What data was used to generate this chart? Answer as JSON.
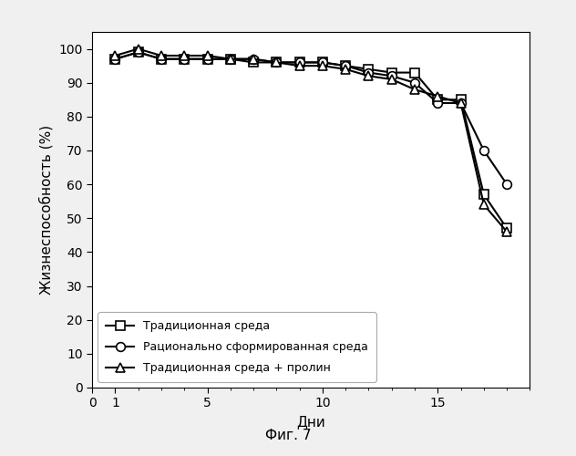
{
  "series": [
    {
      "label": "Традиционная среда",
      "x": [
        1,
        2,
        3,
        4,
        5,
        6,
        7,
        8,
        9,
        10,
        11,
        12,
        13,
        14,
        15,
        16,
        17,
        18
      ],
      "y": [
        97,
        99,
        97,
        97,
        97,
        97,
        96,
        96,
        96,
        96,
        95,
        94,
        93,
        93,
        85,
        85,
        57,
        47
      ],
      "marker": "s",
      "color": "#000000",
      "linestyle": "-"
    },
    {
      "label": "Рационально сформированная среда",
      "x": [
        1,
        2,
        3,
        4,
        5,
        6,
        7,
        8,
        9,
        10,
        11,
        12,
        13,
        14,
        15,
        16,
        17,
        18
      ],
      "y": [
        97,
        99,
        97,
        97,
        97,
        97,
        97,
        96,
        96,
        96,
        95,
        93,
        92,
        90,
        84,
        84,
        70,
        60
      ],
      "marker": "o",
      "color": "#000000",
      "linestyle": "-"
    },
    {
      "label": "Традиционная среда + пролин",
      "x": [
        1,
        2,
        3,
        4,
        5,
        6,
        7,
        8,
        9,
        10,
        11,
        12,
        13,
        14,
        15,
        16,
        17,
        18
      ],
      "y": [
        98,
        100,
        98,
        98,
        98,
        97,
        97,
        96,
        95,
        95,
        94,
        92,
        91,
        88,
        86,
        84,
        54,
        46
      ],
      "marker": "^",
      "color": "#000000",
      "linestyle": "-"
    }
  ],
  "xlabel": "Дни",
  "ylabel": "Жизнеспособность (%)",
  "xlim": [
    0,
    19
  ],
  "ylim": [
    0,
    105
  ],
  "xticks": [
    0,
    1,
    5,
    10,
    15
  ],
  "yticks": [
    0,
    10,
    20,
    30,
    40,
    50,
    60,
    70,
    80,
    90,
    100
  ],
  "xtick_labels": [
    "0",
    "1",
    "5",
    "10",
    "15"
  ],
  "figcaption": "Фиг. 7",
  "background_color": "#f0f0f0",
  "plot_bg": "#ffffff",
  "legend_loc": "lower left",
  "marker_size": 7,
  "linewidth": 1.5
}
